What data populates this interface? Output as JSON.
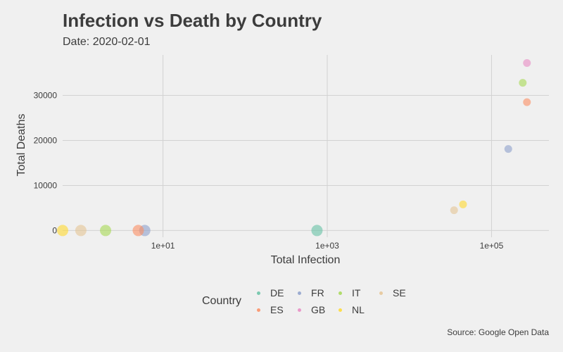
{
  "title": "Infection vs Death by Country",
  "subtitle": "Date: 2020-02-01",
  "caption": "Source: Google Open Data",
  "legend": {
    "title": "Country",
    "items": [
      {
        "label": "DE",
        "color": "#66c2a5"
      },
      {
        "label": "FR",
        "color": "#8da0cb"
      },
      {
        "label": "IT",
        "color": "#a6d854"
      },
      {
        "label": "SE",
        "color": "#e5c494"
      },
      {
        "label": "ES",
        "color": "#fc8d62"
      },
      {
        "label": "GB",
        "color": "#e78ac3"
      },
      {
        "label": "NL",
        "color": "#ffd92f"
      }
    ]
  },
  "chart_data": {
    "type": "scatter",
    "xlabel": "Total Infection",
    "ylabel": "Total Deaths",
    "x_scale": "log10",
    "x_ticks": [
      10,
      1000,
      100000
    ],
    "x_tick_labels": [
      "1e+01",
      "1e+03",
      "1e+05"
    ],
    "y_ticks": [
      0,
      10000,
      20000,
      30000
    ],
    "y_tick_labels": [
      "0",
      "10000",
      "20000",
      "30000"
    ],
    "xlim": [
      0.6,
      500000
    ],
    "ylim": [
      -1500,
      39000
    ],
    "grid": true,
    "legend_position": "bottom",
    "series": [
      {
        "name": "DE",
        "color": "#66c2a5",
        "points": [
          {
            "x": 750,
            "y": 0
          }
        ]
      },
      {
        "name": "FR",
        "color": "#8da0cb",
        "points": [
          {
            "x": 6,
            "y": 0
          },
          {
            "x": 160000,
            "y": 18100
          }
        ]
      },
      {
        "name": "IT",
        "color": "#a6d854",
        "points": [
          {
            "x": 2,
            "y": 0
          },
          {
            "x": 240000,
            "y": 32800
          }
        ]
      },
      {
        "name": "SE",
        "color": "#e5c494",
        "points": [
          {
            "x": 1,
            "y": 0
          },
          {
            "x": 35000,
            "y": 4500
          }
        ]
      },
      {
        "name": "ES",
        "color": "#fc8d62",
        "points": [
          {
            "x": 5,
            "y": 0
          },
          {
            "x": 270000,
            "y": 28500
          }
        ]
      },
      {
        "name": "GB",
        "color": "#e78ac3",
        "points": [
          {
            "x": 270000,
            "y": 37200
          }
        ]
      },
      {
        "name": "NL",
        "color": "#ffd92f",
        "points": [
          {
            "x": 0.6,
            "y": 0
          },
          {
            "x": 45000,
            "y": 5800
          }
        ]
      }
    ]
  }
}
